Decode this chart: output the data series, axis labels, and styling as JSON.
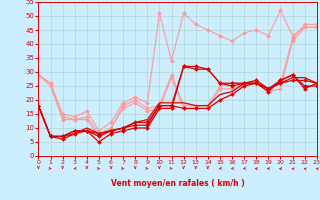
{
  "xlabel": "Vent moyen/en rafales ( km/h )",
  "xlim": [
    0,
    23
  ],
  "ylim": [
    0,
    55
  ],
  "yticks": [
    0,
    5,
    10,
    15,
    20,
    25,
    30,
    35,
    40,
    45,
    50,
    55
  ],
  "xticks": [
    0,
    1,
    2,
    3,
    4,
    5,
    6,
    7,
    8,
    9,
    10,
    11,
    12,
    13,
    14,
    15,
    16,
    17,
    18,
    19,
    20,
    21,
    22,
    23
  ],
  "background_color": "#cceeff",
  "grid_color": "#aacccc",
  "series_dark": [
    {
      "x": [
        0,
        1,
        2,
        3,
        4,
        5,
        6,
        7,
        8,
        9,
        10,
        11,
        12,
        13,
        14,
        15,
        16,
        17,
        18,
        19,
        20,
        21,
        22,
        23
      ],
      "y": [
        18,
        7,
        6,
        8,
        9,
        5,
        8,
        9,
        10,
        10,
        17,
        17,
        32,
        31,
        31,
        26,
        25,
        26,
        26,
        23,
        27,
        29,
        25,
        25
      ],
      "marker": true
    },
    {
      "x": [
        0,
        1,
        2,
        3,
        4,
        5,
        6,
        7,
        8,
        9,
        10,
        11,
        12,
        13,
        14,
        15,
        16,
        17,
        18,
        19,
        20,
        21,
        22,
        23
      ],
      "y": [
        18,
        7,
        7,
        9,
        9,
        7,
        9,
        10,
        11,
        11,
        18,
        18,
        32,
        32,
        31,
        26,
        26,
        26,
        27,
        24,
        27,
        29,
        24,
        26
      ],
      "marker": true
    },
    {
      "x": [
        0,
        1,
        2,
        3,
        4,
        5,
        6,
        7,
        8,
        9,
        10,
        11,
        12,
        13,
        14,
        15,
        16,
        17,
        18,
        19,
        20,
        21,
        22,
        23
      ],
      "y": [
        18,
        7,
        7,
        9,
        9,
        8,
        9,
        10,
        12,
        12,
        18,
        18,
        17,
        17,
        17,
        20,
        22,
        25,
        26,
        24,
        26,
        27,
        27,
        26
      ],
      "marker": true
    },
    {
      "x": [
        0,
        1,
        2,
        3,
        4,
        5,
        6,
        7,
        8,
        9,
        10,
        11,
        12,
        13,
        14,
        15,
        16,
        17,
        18,
        19,
        20,
        21,
        22,
        23
      ],
      "y": [
        18,
        7,
        7,
        8,
        10,
        8,
        9,
        10,
        12,
        13,
        19,
        19,
        19,
        18,
        18,
        22,
        23,
        26,
        26,
        24,
        26,
        28,
        28,
        26
      ],
      "marker": false
    }
  ],
  "series_light": [
    {
      "x": [
        0,
        1,
        2,
        3,
        4,
        5,
        6,
        7,
        8,
        9,
        10,
        11,
        12,
        13,
        14,
        15,
        16,
        17,
        18,
        19,
        20,
        21,
        22,
        23
      ],
      "y": [
        29,
        26,
        14,
        13,
        14,
        8,
        10,
        18,
        20,
        17,
        18,
        29,
        18,
        18,
        18,
        25,
        26,
        26,
        27,
        24,
        26,
        42,
        47,
        47
      ],
      "marker": true
    },
    {
      "x": [
        0,
        1,
        2,
        3,
        4,
        5,
        6,
        7,
        8,
        9,
        10,
        11,
        12,
        13,
        14,
        15,
        16,
        17,
        18,
        19,
        20,
        21,
        22,
        23
      ],
      "y": [
        29,
        26,
        15,
        14,
        16,
        9,
        12,
        19,
        21,
        19,
        51,
        34,
        51,
        47,
        45,
        43,
        41,
        44,
        45,
        43,
        52,
        43,
        46,
        46
      ],
      "marker": true
    },
    {
      "x": [
        0,
        1,
        2,
        3,
        4,
        5,
        6,
        7,
        8,
        9,
        10,
        11,
        12,
        13,
        14,
        15,
        16,
        17,
        18,
        19,
        20,
        21,
        22,
        23
      ],
      "y": [
        29,
        25,
        13,
        13,
        13,
        7,
        10,
        17,
        19,
        16,
        17,
        28,
        17,
        17,
        17,
        24,
        24,
        25,
        26,
        23,
        24,
        41,
        46,
        46
      ],
      "marker": true
    }
  ],
  "dark_color": "#dd0000",
  "light_color": "#ff9999",
  "arrow_angles": [
    0,
    45,
    0,
    -45,
    0,
    45,
    0,
    45,
    0,
    45,
    0,
    45,
    0,
    0,
    0,
    -45,
    -45,
    -45,
    -90,
    -90,
    -90,
    -135,
    -135,
    -135
  ]
}
